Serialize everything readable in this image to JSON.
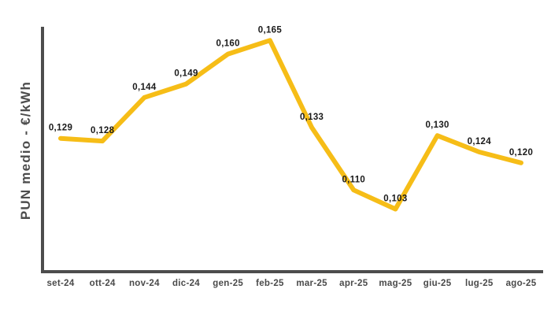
{
  "chart_data": {
    "type": "line",
    "ylabel": "PUN medio - €/kWh",
    "xlabel": "",
    "categories": [
      "set-24",
      "ott-24",
      "nov-24",
      "dic-24",
      "gen-25",
      "feb-25",
      "mar-25",
      "apr-25",
      "mag-25",
      "giu-25",
      "lug-25",
      "ago-25"
    ],
    "values": [
      0.129,
      0.128,
      0.144,
      0.149,
      0.16,
      0.165,
      0.133,
      0.11,
      0.103,
      0.13,
      0.124,
      0.12
    ],
    "point_labels": [
      "0,129",
      "0,128",
      "0,144",
      "0,149",
      "0,160",
      "0,165",
      "0,133",
      "0,110",
      "0,103",
      "0,130",
      "0,124",
      "0,120"
    ],
    "ylim": [
      0.08,
      0.17
    ],
    "grid": false,
    "legend": "none",
    "decimal_format": "comma",
    "colors": {
      "line": "#F6BD17",
      "axis": "#4D4D4D",
      "axis_title": "#4D4D4D",
      "tick_text": "#4A4A4A",
      "label_text": "#1A1A1A"
    }
  }
}
